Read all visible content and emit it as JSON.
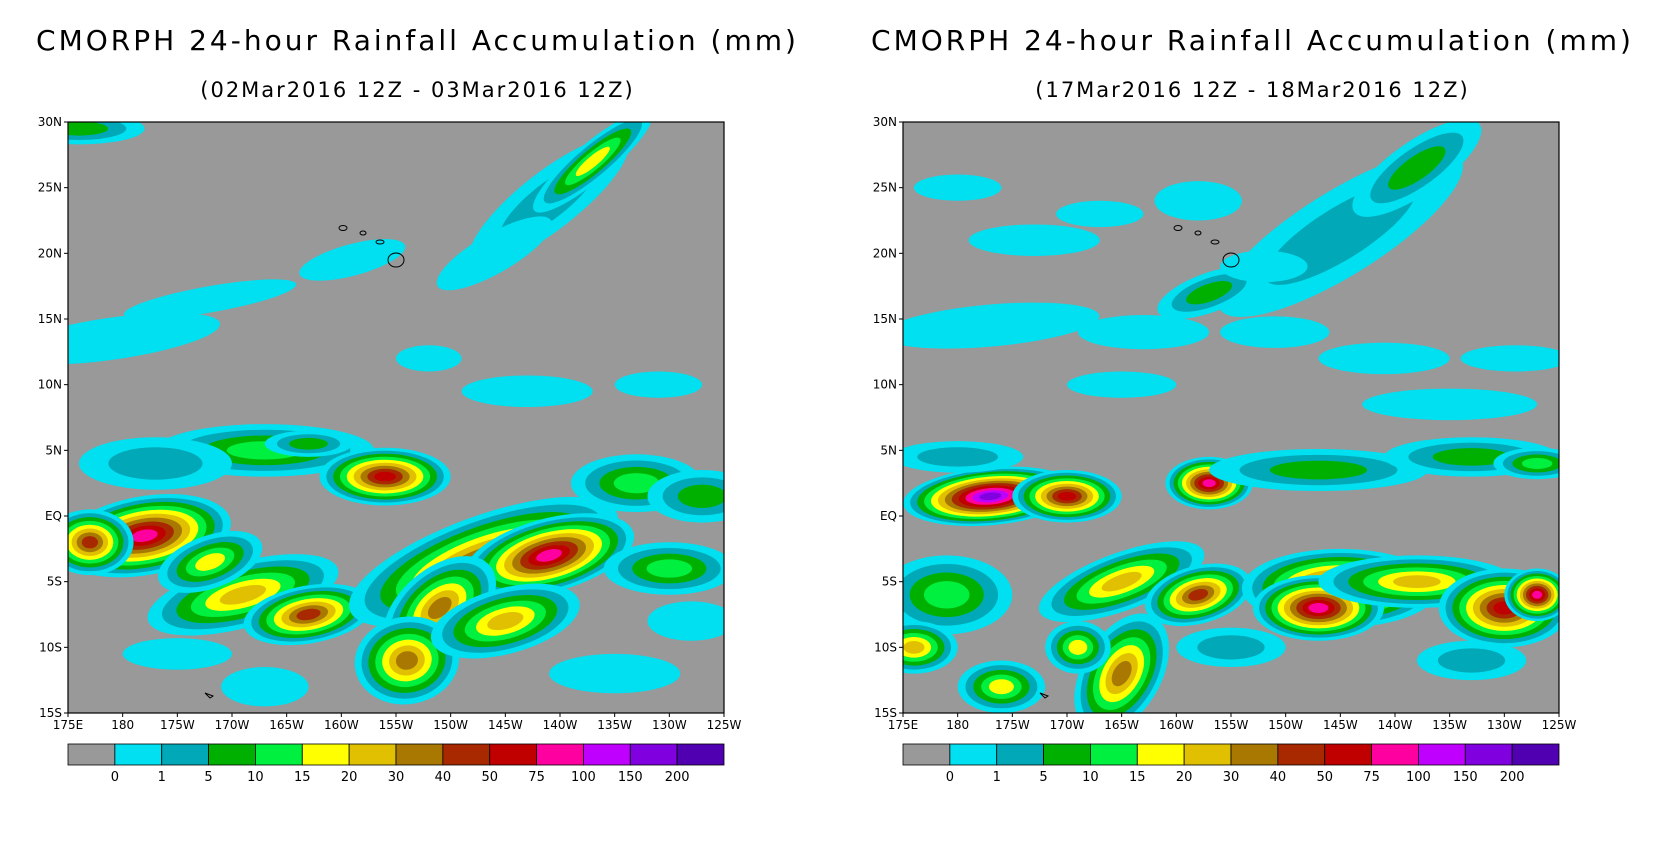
{
  "panels": [
    {
      "title": "CMORPH 24-hour Rainfall Accumulation (mm)",
      "subtitle": "(02Mar2016 12Z - 03Mar2016 12Z)"
    },
    {
      "title": "CMORPH 24-hour Rainfall Accumulation (mm)",
      "subtitle": "(17Mar2016 12Z - 18Mar2016 12Z)"
    }
  ],
  "axes": {
    "lat_ticks": [
      "30N",
      "25N",
      "20N",
      "15N",
      "10N",
      "5N",
      "EQ",
      "5S",
      "10S",
      "15S"
    ],
    "lon_ticks": [
      "175E",
      "180",
      "175W",
      "170W",
      "165W",
      "160W",
      "155W",
      "150W",
      "145W",
      "140W",
      "135W",
      "130W",
      "125W"
    ]
  },
  "colorbar": {
    "labels": [
      "0",
      "1",
      "5",
      "10",
      "15",
      "20",
      "30",
      "40",
      "50",
      "75",
      "100",
      "150",
      "200"
    ],
    "colors": [
      "#999999",
      "#00e0f0",
      "#00a8b8",
      "#00b000",
      "#00f040",
      "#ffff00",
      "#e0c000",
      "#a87800",
      "#a82800",
      "#c00000",
      "#ff00a0",
      "#c000ff",
      "#8000e0",
      "#5000b0"
    ]
  },
  "map_colors": {
    "no_rain": "#999999",
    "coast": "#000000"
  }
}
